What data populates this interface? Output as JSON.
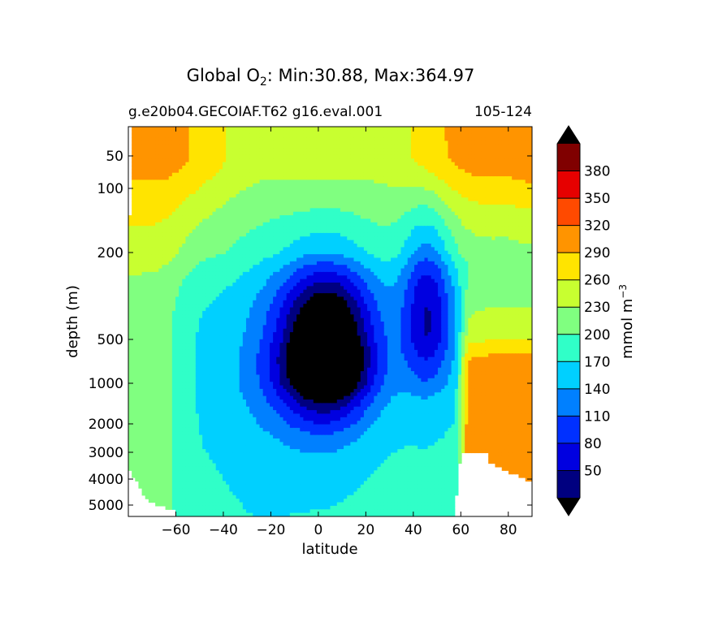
{
  "chart_data": {
    "type": "heatmap",
    "title": {
      "prefix": "Global O",
      "subscript": "2",
      "suffix": ": Min:30.88, Max:364.97"
    },
    "subtitle_left": "g.e20b04.GECOIAF.T62 g16.eval.001",
    "subtitle_right": "105-124",
    "xlabel": "latitude",
    "ylabel": "depth (m)",
    "xlim": [
      -80,
      90
    ],
    "x_ticks": [
      {
        "value": -60,
        "label": "−60"
      },
      {
        "value": -40,
        "label": "−40"
      },
      {
        "value": -20,
        "label": "−20"
      },
      {
        "value": 0,
        "label": "0"
      },
      {
        "value": 20,
        "label": "20"
      },
      {
        "value": 40,
        "label": "40"
      },
      {
        "value": 60,
        "label": "60"
      },
      {
        "value": 80,
        "label": "80"
      }
    ],
    "y_ticks": [
      {
        "value": 50,
        "label": "50"
      },
      {
        "value": 100,
        "label": "100"
      },
      {
        "value": 200,
        "label": "200"
      },
      {
        "value": 500,
        "label": "500"
      },
      {
        "value": 1000,
        "label": "1000"
      },
      {
        "value": 2000,
        "label": "2000"
      },
      {
        "value": 3000,
        "label": "3000"
      },
      {
        "value": 4000,
        "label": "4000"
      },
      {
        "value": 5000,
        "label": "5000"
      }
    ],
    "colorbar": {
      "label_main": "mmol m",
      "label_exp": "−3",
      "levels": [
        20,
        50,
        80,
        110,
        140,
        170,
        200,
        230,
        260,
        290,
        320,
        350,
        380,
        410
      ],
      "tick_labels": [
        "50",
        "80",
        "110",
        "140",
        "170",
        "200",
        "230",
        "260",
        "290",
        "320",
        "350",
        "380"
      ],
      "colors": [
        "#000080",
        "#0000e0",
        "#0030ff",
        "#0080ff",
        "#00d0ff",
        "#30ffc8",
        "#80ff80",
        "#c8ff30",
        "#ffe400",
        "#ff9400",
        "#ff4a00",
        "#e60000",
        "#800000"
      ],
      "extend_colors": [
        "#000000",
        "#000000"
      ]
    },
    "missing_color": "#ffffff"
  }
}
